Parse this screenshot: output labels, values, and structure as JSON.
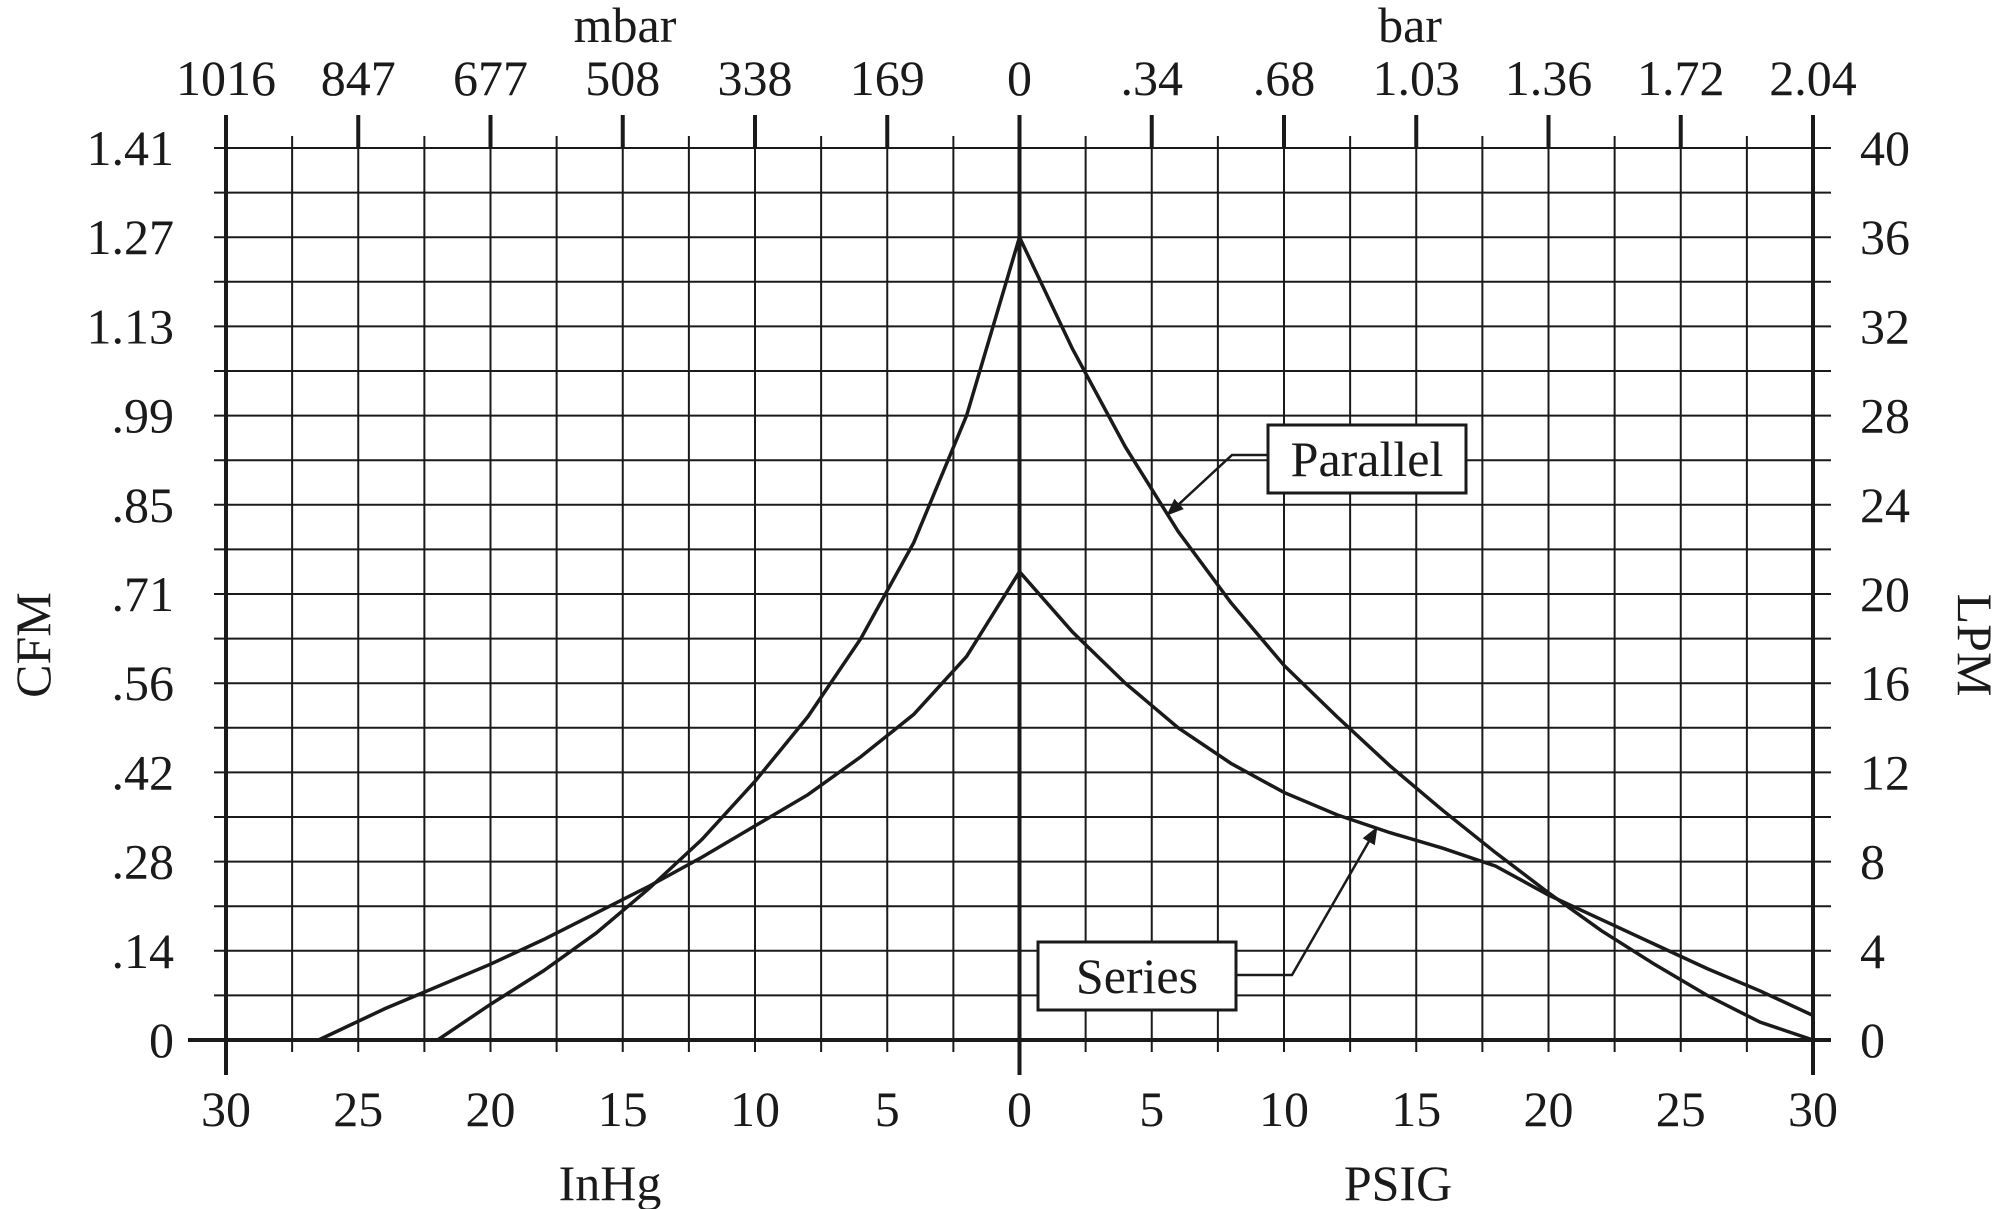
{
  "chart_data": {
    "type": "line",
    "units": {
      "left": "CFM",
      "right": "LPM",
      "bottom_left": "InHg",
      "bottom_right": "PSIG",
      "top_left": "mbar",
      "top_right": "bar"
    },
    "x_axis": {
      "description": "signed pressure: negative = vacuum (InHg), positive = pressure (PSIG)",
      "range": [
        -30,
        30
      ],
      "tick_values": [
        -30,
        -25,
        -20,
        -15,
        -10,
        -5,
        0,
        5,
        10,
        15,
        20,
        25,
        30
      ],
      "tick_labels": [
        "30",
        "25",
        "20",
        "15",
        "10",
        "5",
        "0",
        "5",
        "10",
        "15",
        "20",
        "25",
        "30"
      ]
    },
    "top_axis": {
      "tick_values": [
        -30,
        -25,
        -20,
        -15,
        -10,
        -5,
        0,
        5,
        10,
        15,
        20,
        25,
        30
      ],
      "tick_labels": [
        "1016",
        "847",
        "677",
        "508",
        "338",
        "169",
        "0",
        ".34",
        ".68",
        "1.03",
        "1.36",
        "1.72",
        "2.04"
      ]
    },
    "y_axis": {
      "range": [
        0,
        40
      ],
      "tick_values": [
        0,
        4,
        8,
        12,
        16,
        20,
        24,
        28,
        32,
        36,
        40
      ],
      "left_labels": [
        "0",
        ".14",
        ".28",
        ".42",
        ".56",
        ".71",
        ".85",
        ".99",
        "1.13",
        "1.27",
        "1.41"
      ],
      "right_labels": [
        "0",
        "4",
        "8",
        "12",
        "16",
        "20",
        "24",
        "28",
        "32",
        "36",
        "40"
      ]
    },
    "grid": true,
    "series": [
      {
        "name": "Parallel",
        "x": [
          -22,
          -20,
          -18,
          -16,
          -14,
          -12,
          -10,
          -8,
          -6,
          -4,
          -2,
          0,
          2,
          4,
          6,
          8,
          10,
          12,
          14,
          16,
          18,
          20,
          22,
          24,
          26,
          28,
          30
        ],
        "y": [
          0,
          1.6,
          3.1,
          4.8,
          6.8,
          9.0,
          11.6,
          14.5,
          18.0,
          22.3,
          28.0,
          36.0,
          31.0,
          26.6,
          22.8,
          19.6,
          16.8,
          14.5,
          12.3,
          10.3,
          8.4,
          6.6,
          4.9,
          3.4,
          2.0,
          0.8,
          0
        ]
      },
      {
        "name": "Series",
        "x": [
          -26.5,
          -24,
          -22,
          -20,
          -18,
          -16,
          -14,
          -12,
          -10,
          -8,
          -6,
          -4,
          -2,
          0,
          2,
          4,
          6,
          8,
          10,
          12,
          14,
          16,
          18,
          20,
          22,
          24,
          26,
          28,
          30
        ],
        "y": [
          0,
          1.4,
          2.4,
          3.4,
          4.5,
          5.7,
          6.9,
          8.2,
          9.6,
          11.0,
          12.7,
          14.6,
          17.2,
          21.0,
          18.3,
          16.0,
          14.0,
          12.4,
          11.1,
          10.1,
          9.3,
          8.6,
          7.8,
          6.5,
          5.4,
          4.3,
          3.2,
          2.2,
          1.1
        ]
      }
    ],
    "annotations": [
      {
        "text": "Parallel",
        "points_to": "Parallel"
      },
      {
        "text": "Series",
        "points_to": "Series"
      }
    ]
  }
}
